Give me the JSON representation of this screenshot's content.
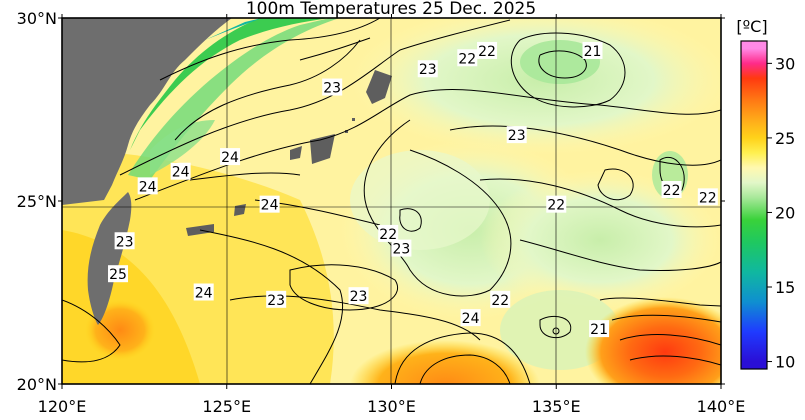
{
  "title": "100m Temperatures  25 Dec. 2025",
  "lat_labels": [
    "30°N",
    "25°N",
    "20°N"
  ],
  "lon_labels": [
    "120°E",
    "125°E",
    "130°E",
    "135°E",
    "140°E"
  ],
  "lat_values": [
    30,
    25,
    20
  ],
  "lon_values": [
    120,
    125,
    130,
    135,
    140
  ],
  "extent": {
    "lon_min": 120,
    "lon_max": 140,
    "lat_min": 20,
    "lat_max": 30
  },
  "colorbar": {
    "unit": "[ºC]",
    "ticks": [
      "30",
      "25",
      "20",
      "15",
      "10"
    ],
    "tick_values": [
      30,
      25,
      20,
      15,
      10
    ],
    "min": 9.5,
    "max": 31.5,
    "stops": [
      {
        "v": 10,
        "c": "#2a0fd6"
      },
      {
        "v": 12,
        "c": "#1f3bff"
      },
      {
        "v": 14,
        "c": "#0f8fd0"
      },
      {
        "v": 16,
        "c": "#10b8a0"
      },
      {
        "v": 18,
        "c": "#1fc860"
      },
      {
        "v": 19.5,
        "c": "#39d23a"
      },
      {
        "v": 21,
        "c": "#a8e89a"
      },
      {
        "v": 22,
        "c": "#e2f7c8"
      },
      {
        "v": 23,
        "c": "#fff8b0"
      },
      {
        "v": 24,
        "c": "#fff050"
      },
      {
        "v": 25,
        "c": "#ffd21a"
      },
      {
        "v": 26,
        "c": "#ffb21a"
      },
      {
        "v": 27.5,
        "c": "#ff7a14"
      },
      {
        "v": 29,
        "c": "#ff3a10"
      },
      {
        "v": 30,
        "c": "#ff2b8a"
      },
      {
        "v": 31,
        "c": "#ff8ae6"
      }
    ]
  },
  "contour_labels": [
    {
      "text": "23",
      "lon": 128.2,
      "lat": 28.1
    },
    {
      "text": "23",
      "lon": 131.1,
      "lat": 28.6
    },
    {
      "text": "22",
      "lon": 132.3,
      "lat": 28.9
    },
    {
      "text": "22",
      "lon": 132.9,
      "lat": 29.1
    },
    {
      "text": "21",
      "lon": 136.1,
      "lat": 29.1
    },
    {
      "text": "23",
      "lon": 133.8,
      "lat": 26.8
    },
    {
      "text": "24",
      "lon": 125.1,
      "lat": 26.2
    },
    {
      "text": "24",
      "lon": 123.6,
      "lat": 25.8
    },
    {
      "text": "24",
      "lon": 122.6,
      "lat": 25.4
    },
    {
      "text": "24",
      "lon": 126.3,
      "lat": 24.9
    },
    {
      "text": "22",
      "lon": 135.0,
      "lat": 24.9
    },
    {
      "text": "22",
      "lon": 138.5,
      "lat": 25.3
    },
    {
      "text": "22",
      "lon": 139.6,
      "lat": 25.1
    },
    {
      "text": "22",
      "lon": 129.9,
      "lat": 24.1
    },
    {
      "text": "23",
      "lon": 130.3,
      "lat": 23.7
    },
    {
      "text": "23",
      "lon": 121.9,
      "lat": 23.9
    },
    {
      "text": "25",
      "lon": 121.7,
      "lat": 23.0
    },
    {
      "text": "24",
      "lon": 124.3,
      "lat": 22.5
    },
    {
      "text": "23",
      "lon": 126.5,
      "lat": 22.3
    },
    {
      "text": "23",
      "lon": 129.0,
      "lat": 22.4
    },
    {
      "text": "22",
      "lon": 133.3,
      "lat": 22.3
    },
    {
      "text": "24",
      "lon": 132.4,
      "lat": 21.8
    },
    {
      "text": "21",
      "lon": 136.3,
      "lat": 21.5
    }
  ]
}
